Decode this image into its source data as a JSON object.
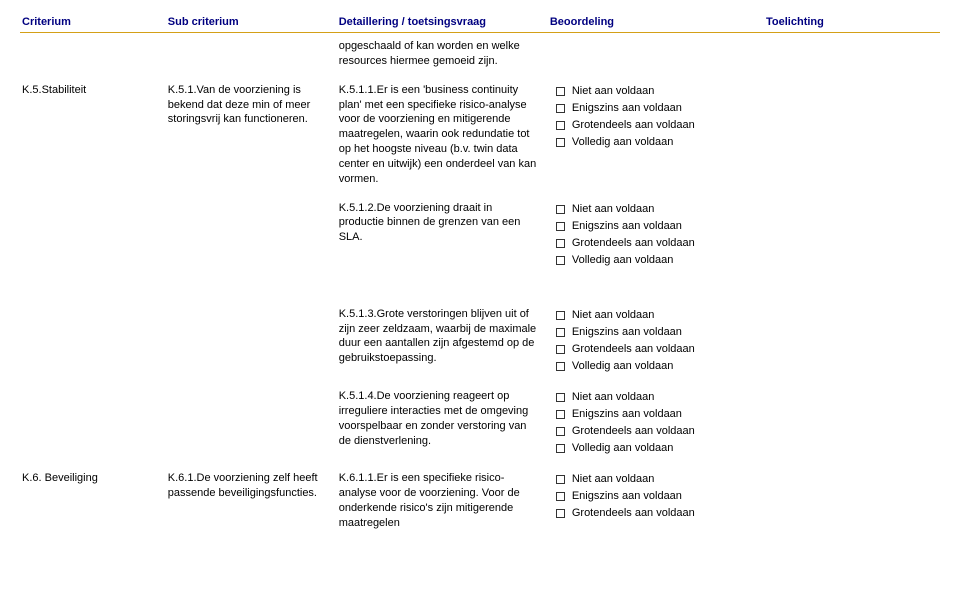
{
  "headers": {
    "criterium": "Criterium",
    "sub": "Sub criterium",
    "detail": "Detaillering / toetsingsvraag",
    "assess": "Beoordeling",
    "explain": "Toelichting"
  },
  "assess_options": {
    "o1": "Niet aan voldaan",
    "o2": "Enigszins aan voldaan",
    "o3": "Grotendeels aan voldaan",
    "o4": "Volledig aan voldaan"
  },
  "rows": {
    "r0": {
      "detail": "opgeschaald of kan worden en welke resources hiermee gemoeid zijn."
    },
    "r1": {
      "crit": "K.5.Stabiliteit",
      "sub": "K.5.1.Van de voorziening is bekend dat deze min of meer storingsvrij kan functioneren.",
      "detail": "K.5.1.1.Er is een 'business continuity plan' met een specifieke risico-analyse voor de voorziening en mitigerende maatregelen, waarin ook redundatie tot op het hoogste niveau (b.v. twin data center en uitwijk) een onderdeel van kan vormen."
    },
    "r2": {
      "detail": "K.5.1.2.De voorziening draait in productie binnen de grenzen van een SLA."
    },
    "r3": {
      "detail": "K.5.1.3.Grote verstoringen blijven uit of zijn zeer zeldzaam, waarbij de maximale duur een aantallen zijn afgestemd op de gebruikstoepassing."
    },
    "r4": {
      "detail": "K.5.1.4.De voorziening reageert op irreguliere interacties met de omgeving voorspelbaar en zonder verstoring van de dienstverlening."
    },
    "r5": {
      "crit": "K.6. Beveiliging",
      "sub": "K.6.1.De voorziening zelf heeft passende beveiligingsfuncties.",
      "detail": "K.6.1.1.Er is een specifieke risico-analyse voor de voorziening. Voor de onderkende risico's zijn mitigerende maatregelen"
    }
  }
}
